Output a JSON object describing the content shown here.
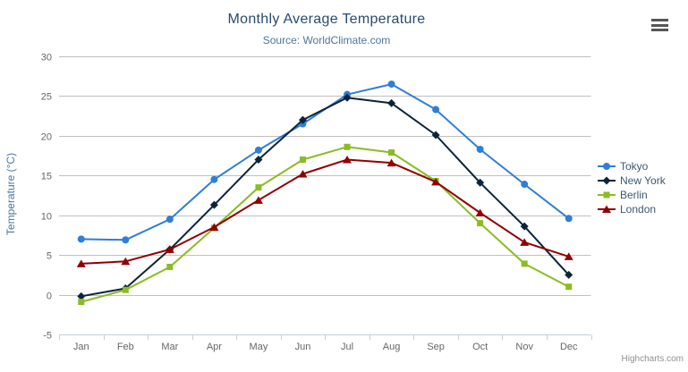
{
  "header": {
    "title": "Monthly Average Temperature",
    "subtitle": "Source: WorldClimate.com"
  },
  "credits": {
    "label": "Highcharts.com"
  },
  "icons": {
    "export_menu": "hamburger-menu"
  },
  "colors": {
    "title": "#274b6d",
    "subtitle": "#4d759e",
    "axis_title": "#4d759e",
    "axis_labels": "#666666",
    "gridline": "#c0c0c0",
    "axis_line": "#c0d0e0",
    "legend_text": "#3e576f",
    "credits": "#909090"
  },
  "chart_data": {
    "type": "line",
    "title": "Monthly Average Temperature",
    "subtitle": "Source: WorldClimate.com",
    "xlabel": "",
    "ylabel": "Temperature (°C)",
    "categories": [
      "Jan",
      "Feb",
      "Mar",
      "Apr",
      "May",
      "Jun",
      "Jul",
      "Aug",
      "Sep",
      "Oct",
      "Nov",
      "Dec"
    ],
    "series": [
      {
        "name": "Tokyo",
        "color": "#2f7ed8",
        "symbol": "circle",
        "values": [
          7.0,
          6.9,
          9.5,
          14.5,
          18.2,
          21.5,
          25.2,
          26.5,
          23.3,
          18.3,
          13.9,
          9.6
        ]
      },
      {
        "name": "New York",
        "color": "#0d233a",
        "symbol": "diamond",
        "values": [
          -0.2,
          0.8,
          5.7,
          11.3,
          17.0,
          22.0,
          24.8,
          24.1,
          20.1,
          14.1,
          8.6,
          2.5
        ]
      },
      {
        "name": "Berlin",
        "color": "#8bbc21",
        "symbol": "square",
        "values": [
          -0.9,
          0.6,
          3.5,
          8.4,
          13.5,
          17.0,
          18.6,
          17.9,
          14.3,
          9.0,
          3.9,
          1.0
        ]
      },
      {
        "name": "London",
        "color": "#910000",
        "symbol": "triangle",
        "values": [
          3.9,
          4.2,
          5.7,
          8.5,
          11.9,
          15.2,
          17.0,
          16.6,
          14.2,
          10.3,
          6.6,
          4.8
        ]
      }
    ],
    "ylim": [
      -5,
      30
    ],
    "yticks": [
      30,
      25,
      20,
      15,
      10,
      5,
      0,
      -5
    ],
    "grid": "horizontal",
    "legend_position": "right"
  }
}
